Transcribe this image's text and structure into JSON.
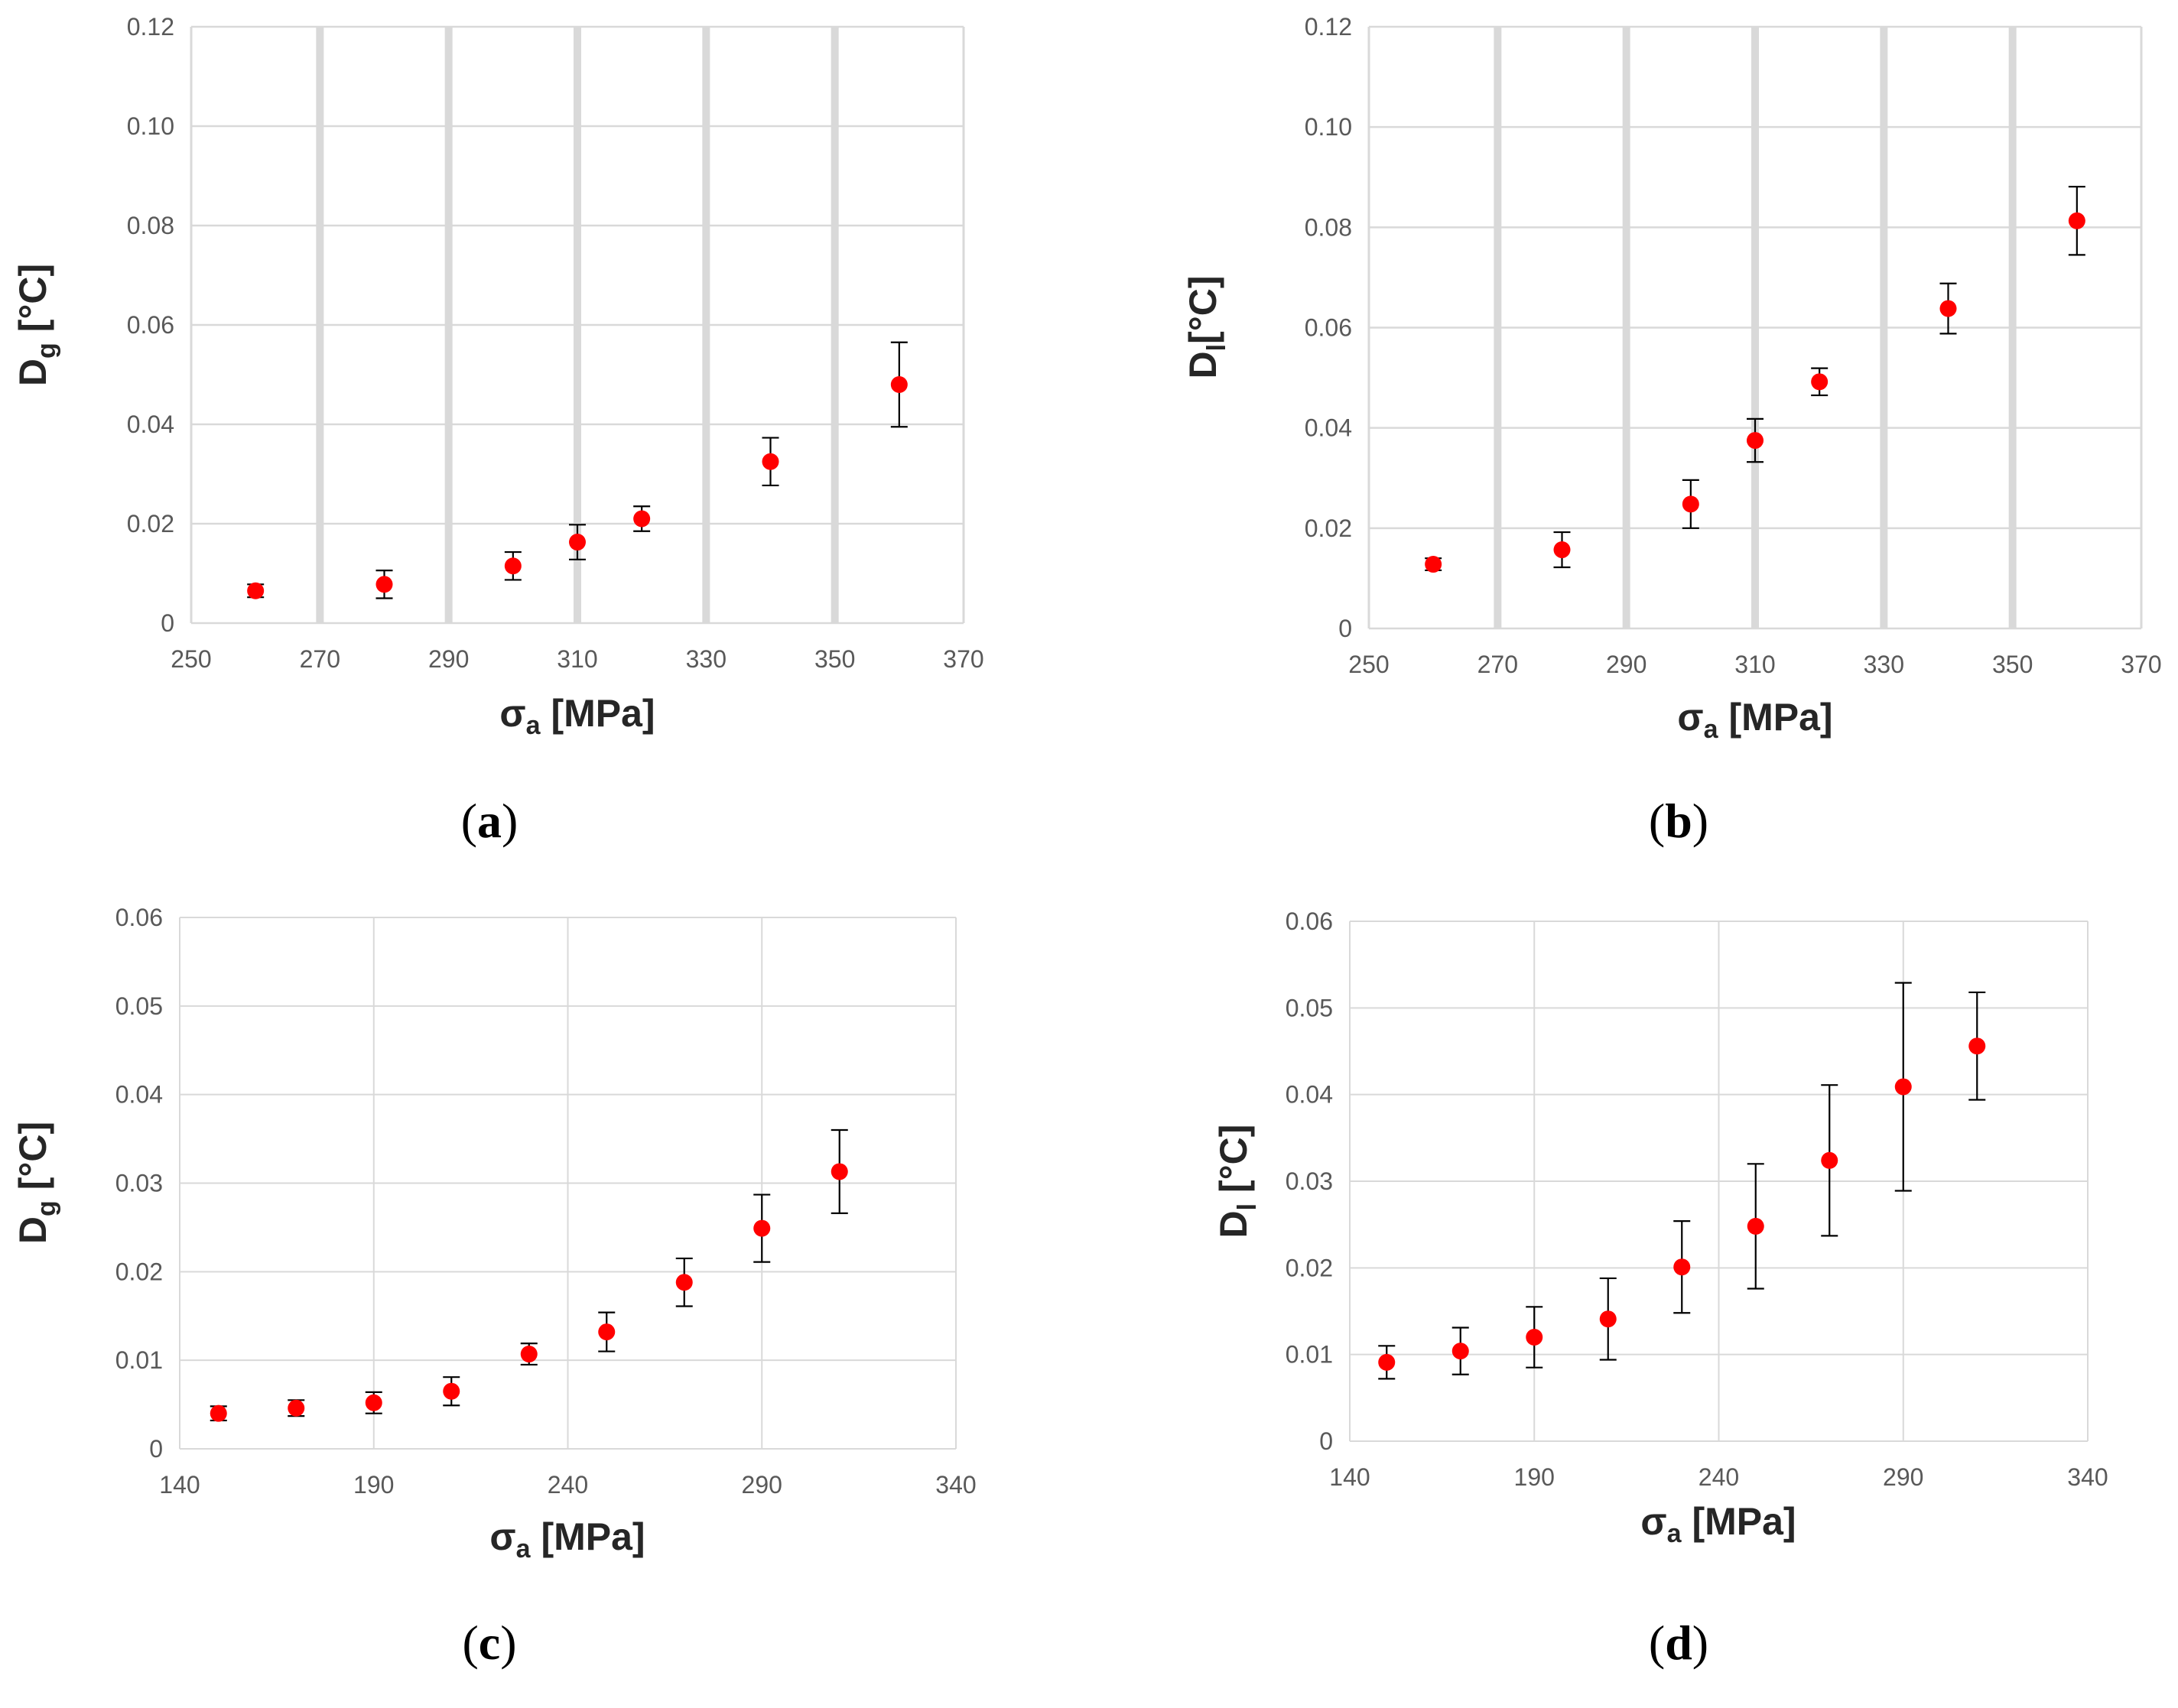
{
  "chart_data": [
    {
      "type": "scatter",
      "panel": "a",
      "caption_letter": "a",
      "ylabel_main": "D",
      "ylabel_sub": "g",
      "ylabel_unit": " [°C]",
      "xlabel_main": "σ",
      "xlabel_sub": "a",
      "xlabel_unit": " [MPa]",
      "xlim": [
        250,
        370
      ],
      "ylim": [
        0,
        0.12
      ],
      "xticks": [
        "250",
        "270",
        "290",
        "310",
        "330",
        "350",
        "370"
      ],
      "xtick_values": [
        250,
        270,
        290,
        310,
        330,
        350,
        370
      ],
      "yticks": [
        "0",
        "0.02",
        "0.04",
        "0.06",
        "0.08",
        "0.10",
        "0.12"
      ],
      "ytick_values": [
        0,
        0.02,
        0.04,
        0.06,
        0.08,
        0.1,
        0.12
      ],
      "grid": "heavy-vertical",
      "marker_color": "#ff0000",
      "series": [
        {
          "name": "Dg",
          "x": [
            260,
            280,
            300,
            310,
            320,
            340,
            360
          ],
          "y": [
            0.0065,
            0.0078,
            0.0115,
            0.0163,
            0.021,
            0.0325,
            0.048
          ],
          "err_low": [
            0.0013,
            0.0028,
            0.0028,
            0.0035,
            0.0025,
            0.0048,
            0.0085
          ],
          "err_high": [
            0.0013,
            0.0028,
            0.0028,
            0.0035,
            0.0025,
            0.0048,
            0.0085
          ]
        }
      ]
    },
    {
      "type": "scatter",
      "panel": "b",
      "caption_letter": "b",
      "ylabel_main": "D",
      "ylabel_sub": "l",
      "ylabel_unit": "[°C]",
      "xlabel_main": "σ",
      "xlabel_sub": "a",
      "xlabel_unit": " [MPa]",
      "xlim": [
        250,
        370
      ],
      "ylim": [
        0,
        0.12
      ],
      "xticks": [
        "250",
        "270",
        "290",
        "310",
        "330",
        "350",
        "370"
      ],
      "xtick_values": [
        250,
        270,
        290,
        310,
        330,
        350,
        370
      ],
      "yticks": [
        "0",
        "0.02",
        "0.04",
        "0.06",
        "0.08",
        "0.10",
        "0.12"
      ],
      "ytick_values": [
        0,
        0.02,
        0.04,
        0.06,
        0.08,
        0.1,
        0.12
      ],
      "grid": "heavy-vertical",
      "marker_color": "#ff0000",
      "series": [
        {
          "name": "Dl",
          "x": [
            260,
            280,
            300,
            310,
            320,
            340,
            360
          ],
          "y": [
            0.0128,
            0.0157,
            0.0248,
            0.0375,
            0.0492,
            0.0638,
            0.0813
          ],
          "err_low": [
            0.0012,
            0.0035,
            0.0048,
            0.0043,
            0.0027,
            0.005,
            0.0068
          ],
          "err_high": [
            0.0012,
            0.0035,
            0.0048,
            0.0043,
            0.0027,
            0.005,
            0.0068
          ]
        }
      ]
    },
    {
      "type": "scatter",
      "panel": "c",
      "caption_letter": "c",
      "ylabel_main": "D",
      "ylabel_sub": "g",
      "ylabel_unit": " [°C]",
      "xlabel_main": "σ",
      "xlabel_sub": "a",
      "xlabel_unit": " [MPa]",
      "xlim": [
        140,
        340
      ],
      "ylim": [
        0,
        0.06
      ],
      "xticks": [
        "140",
        "190",
        "240",
        "290",
        "340"
      ],
      "xtick_values": [
        140,
        190,
        240,
        290,
        340
      ],
      "yticks": [
        "0",
        "0.01",
        "0.02",
        "0.03",
        "0.04",
        "0.05",
        "0.06"
      ],
      "ytick_values": [
        0,
        0.01,
        0.02,
        0.03,
        0.04,
        0.05,
        0.06
      ],
      "grid": "light",
      "marker_color": "#ff0000",
      "series": [
        {
          "name": "Dg",
          "x": [
            150,
            170,
            190,
            210,
            230,
            250,
            270,
            290,
            310
          ],
          "y": [
            0.004,
            0.0046,
            0.0052,
            0.0065,
            0.0107,
            0.0132,
            0.0188,
            0.0249,
            0.0313
          ],
          "err_low": [
            0.0008,
            0.0009,
            0.0012,
            0.0016,
            0.0012,
            0.0022,
            0.0027,
            0.0038,
            0.0047
          ],
          "err_high": [
            0.0008,
            0.0009,
            0.0012,
            0.0016,
            0.0012,
            0.0022,
            0.0027,
            0.0038,
            0.0047
          ]
        }
      ]
    },
    {
      "type": "scatter",
      "panel": "d",
      "caption_letter": "d",
      "ylabel_main": "D",
      "ylabel_sub": "l",
      "ylabel_unit": " [°C]",
      "xlabel_main": "σ",
      "xlabel_sub": "a",
      "xlabel_unit": " [MPa]",
      "xlim": [
        140,
        340
      ],
      "ylim": [
        0,
        0.06
      ],
      "xticks": [
        "140",
        "190",
        "240",
        "290",
        "340"
      ],
      "xtick_values": [
        140,
        190,
        240,
        290,
        340
      ],
      "yticks": [
        "0",
        "0.01",
        "0.02",
        "0.03",
        "0.04",
        "0.05",
        "0.06"
      ],
      "ytick_values": [
        0,
        0.01,
        0.02,
        0.03,
        0.04,
        0.05,
        0.06
      ],
      "grid": "light",
      "marker_color": "#ff0000",
      "series": [
        {
          "name": "Dl",
          "x": [
            150,
            170,
            190,
            210,
            230,
            250,
            270,
            290,
            310
          ],
          "y": [
            0.0091,
            0.0104,
            0.012,
            0.0141,
            0.0201,
            0.0248,
            0.0324,
            0.0409,
            0.0456
          ],
          "err_low": [
            0.0019,
            0.0027,
            0.0035,
            0.0047,
            0.0053,
            0.0072,
            0.0087,
            0.012,
            0.0062
          ],
          "err_high": [
            0.0019,
            0.0027,
            0.0035,
            0.0047,
            0.0053,
            0.0072,
            0.0087,
            0.012,
            0.0062
          ]
        }
      ]
    }
  ]
}
